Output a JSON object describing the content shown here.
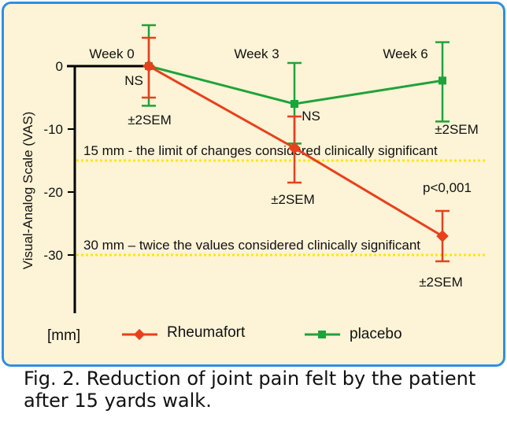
{
  "figure": {
    "caption": "Fig. 2. Reduction of joint pain felt by the patient after 15 yards walk."
  },
  "colors": {
    "panel_border": "#2e8fe0",
    "panel_bg": "#fdf3d6",
    "rheumafort": "#e8401c",
    "placebo": "#1ea33a",
    "threshold": "#ffe800"
  },
  "chart_data": {
    "type": "line",
    "title": "",
    "xlabel": "",
    "ylabel": "Visual-Analog Scale (VAS)",
    "unit_label": "[mm]",
    "categories": [
      "Week 0",
      "Week 3",
      "Week 6"
    ],
    "ylim": [
      -39,
      2
    ],
    "yticks": [
      0,
      -10,
      -20,
      -30
    ],
    "grid": false,
    "legend_position": "bottom",
    "series": [
      {
        "name": "Rheumafort",
        "marker": "diamond",
        "values": [
          0,
          -13,
          -27
        ],
        "error_upper": [
          4.5,
          -8,
          -23
        ],
        "error_lower": [
          -5,
          -18.5,
          -31
        ]
      },
      {
        "name": "placebo",
        "marker": "square",
        "values": [
          0,
          -6,
          -2.3
        ],
        "error_upper": [
          6.5,
          0.5,
          3.8
        ],
        "error_lower": [
          -6.3,
          -12.3,
          -8.8
        ]
      }
    ],
    "reference_lines": [
      {
        "y": -15,
        "label": "15 mm - the limit of changes considered clinically significant"
      },
      {
        "y": -30,
        "label": "30 mm – twice the values considered clinically significant"
      }
    ],
    "annotations": {
      "ns_week0": "NS",
      "sem_week0": "±2SEM",
      "ns_week3": "NS",
      "sem_week3": "±2SEM",
      "sem_week6_placebo": "±2SEM",
      "p_week6": "p<0,001",
      "sem_week6_rheumafort": "±2SEM"
    }
  }
}
